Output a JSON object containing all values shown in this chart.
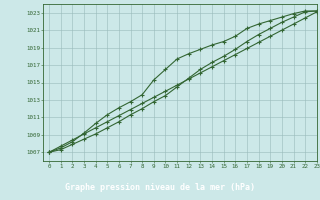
{
  "title": "Graphe pression niveau de la mer (hPa)",
  "x": [
    0,
    1,
    2,
    3,
    4,
    5,
    6,
    7,
    8,
    9,
    10,
    11,
    12,
    13,
    14,
    15,
    16,
    17,
    18,
    19,
    20,
    21,
    22,
    23
  ],
  "line_straight": [
    1007.0,
    1007.7,
    1008.4,
    1009.1,
    1009.8,
    1010.5,
    1011.2,
    1011.9,
    1012.6,
    1013.3,
    1014.0,
    1014.7,
    1015.4,
    1016.1,
    1016.8,
    1017.5,
    1018.2,
    1018.9,
    1019.6,
    1020.3,
    1021.0,
    1021.7,
    1022.4,
    1023.1
  ],
  "line_upper": [
    1007.0,
    1007.5,
    1008.2,
    1009.2,
    1010.3,
    1011.3,
    1012.1,
    1012.8,
    1013.6,
    1015.3,
    1016.5,
    1017.7,
    1018.3,
    1018.8,
    1019.3,
    1019.7,
    1020.3,
    1021.2,
    1021.7,
    1022.1,
    1022.5,
    1022.9,
    1023.2,
    1023.2
  ],
  "line_lower": [
    1007.0,
    1007.3,
    1007.9,
    1008.5,
    1009.1,
    1009.8,
    1010.5,
    1011.3,
    1012.0,
    1012.8,
    1013.5,
    1014.5,
    1015.5,
    1016.5,
    1017.3,
    1018.0,
    1018.8,
    1019.7,
    1020.5,
    1021.2,
    1021.9,
    1022.5,
    1023.1,
    1023.2
  ],
  "ylim": [
    1006.0,
    1024.0
  ],
  "xlim": [
    -0.5,
    23
  ],
  "yticks": [
    1007,
    1009,
    1011,
    1013,
    1015,
    1017,
    1019,
    1021,
    1023
  ],
  "xticks": [
    0,
    1,
    2,
    3,
    4,
    5,
    6,
    7,
    8,
    9,
    10,
    11,
    12,
    13,
    14,
    15,
    16,
    17,
    18,
    19,
    20,
    21,
    22,
    23
  ],
  "line_color": "#336633",
  "bg_color": "#cce8e8",
  "grid_color": "#99bbbb",
  "title_color": "white",
  "title_bg": "#336633",
  "linewidth": 0.8,
  "markersize": 3.5,
  "marker_ew": 0.8
}
